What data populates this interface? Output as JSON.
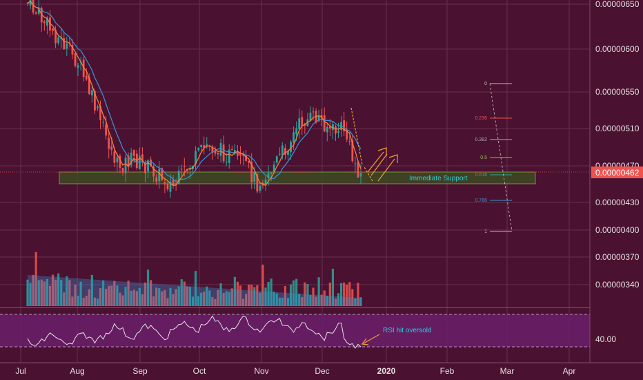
{
  "chart_data": {
    "type": "candlestick",
    "price_ticks": [
      "0.00000650",
      "0.00000600",
      "0.00000550",
      "0.00000510",
      "0.00000470",
      "0.00000430",
      "0.00000400",
      "0.00000370",
      "0.00000340"
    ],
    "current_price": "0.00000462",
    "x_ticks": [
      "Jul",
      "Aug",
      "Sep",
      "Oct",
      "Nov",
      "Dec",
      "2020",
      "Feb",
      "Mar",
      "Apr"
    ],
    "rsi_tick": "40.00",
    "annotations": {
      "support": "Immediate Support",
      "rsi": "RSI hit oversold"
    },
    "fib_levels": [
      "0",
      "0.236",
      "0.382",
      "0.5",
      "0.618",
      "0.786",
      "1"
    ],
    "colors": {
      "background": "#4a1230",
      "up": "#26a69a",
      "down": "#ef5350",
      "ma_fast": "#f08040",
      "ma_slow": "#3a8fd0",
      "support_zone": "#3c4a22",
      "rsi_band": "#6a1f6a",
      "price_tag": "#ef5350",
      "rsi_callout": "#f0a030"
    }
  }
}
